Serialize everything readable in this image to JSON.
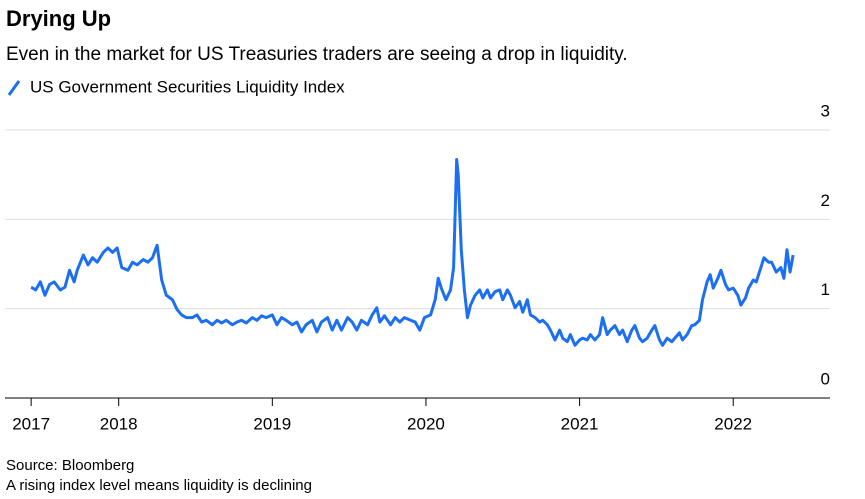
{
  "chart_data": {
    "type": "line",
    "title": "Drying Up",
    "subtitle": "Even in the market for US Treasuries traders are seeing a drop in liquidity.",
    "source": "Source: Bloomberg",
    "note": "A rising index level means liquidity is declining",
    "x": [
      2017.43,
      2017.46,
      2017.49,
      2017.52,
      2017.55,
      2017.58,
      2017.62,
      2017.65,
      2017.68,
      2017.71,
      2017.73,
      2017.77,
      2017.8,
      2017.83,
      2017.86,
      2017.9,
      2017.93,
      2017.96,
      2017.99,
      2018.02,
      2018.06,
      2018.09,
      2018.12,
      2018.16,
      2018.19,
      2018.22,
      2018.25,
      2018.28,
      2018.31,
      2018.35,
      2018.38,
      2018.41,
      2018.44,
      2018.48,
      2018.51,
      2018.54,
      2018.57,
      2018.61,
      2018.64,
      2018.67,
      2018.7,
      2018.74,
      2018.77,
      2018.8,
      2018.83,
      2018.87,
      2018.9,
      2018.93,
      2018.96,
      2019.0,
      2019.03,
      2019.06,
      2019.09,
      2019.13,
      2019.16,
      2019.19,
      2019.22,
      2019.26,
      2019.29,
      2019.32,
      2019.36,
      2019.39,
      2019.42,
      2019.45,
      2019.49,
      2019.52,
      2019.55,
      2019.58,
      2019.62,
      2019.65,
      2019.68,
      2019.7,
      2019.73,
      2019.77,
      2019.8,
      2019.83,
      2019.86,
      2019.9,
      2019.93,
      2019.96,
      2019.99,
      2020.03,
      2020.06,
      2020.08,
      2020.1,
      2020.13,
      2020.16,
      2020.18,
      2020.2,
      2020.21,
      2020.23,
      2020.25,
      2020.27,
      2020.29,
      2020.32,
      2020.35,
      2020.37,
      2020.4,
      2020.42,
      2020.45,
      2020.48,
      2020.5,
      2020.53,
      2020.55,
      2020.58,
      2020.61,
      2020.63,
      2020.66,
      2020.68,
      2020.71,
      2020.74,
      2020.76,
      2020.79,
      2020.81,
      2020.84,
      2020.87,
      2020.89,
      2020.92,
      2020.94,
      2020.97,
      2021.0,
      2021.02,
      2021.05,
      2021.07,
      2021.1,
      2021.13,
      2021.15,
      2021.18,
      2021.2,
      2021.23,
      2021.26,
      2021.28,
      2021.31,
      2021.34,
      2021.36,
      2021.39,
      2021.41,
      2021.44,
      2021.47,
      2021.49,
      2021.52,
      2021.54,
      2021.57,
      2021.6,
      2021.62,
      2021.65,
      2021.67,
      2021.7,
      2021.73,
      2021.75,
      2021.78,
      2021.8,
      2021.83,
      2021.85,
      2021.87,
      2021.9,
      2021.92,
      2021.95,
      2021.97,
      2022.0,
      2022.03,
      2022.05,
      2022.08,
      2022.1,
      2022.13,
      2022.15,
      2022.18,
      2022.2,
      2022.23,
      2022.25,
      2022.28,
      2022.31,
      2022.33,
      2022.35,
      2022.37,
      2022.39
    ],
    "series": [
      {
        "name": "US Government Securities Liquidity Index",
        "color": "#1c6ff0",
        "values": [
          1.24,
          1.21,
          1.3,
          1.15,
          1.27,
          1.3,
          1.21,
          1.24,
          1.43,
          1.3,
          1.43,
          1.6,
          1.49,
          1.57,
          1.52,
          1.63,
          1.68,
          1.63,
          1.68,
          1.46,
          1.43,
          1.52,
          1.49,
          1.55,
          1.52,
          1.57,
          1.71,
          1.32,
          1.15,
          1.1,
          0.99,
          0.93,
          0.9,
          0.9,
          0.93,
          0.85,
          0.87,
          0.82,
          0.87,
          0.84,
          0.87,
          0.82,
          0.85,
          0.87,
          0.84,
          0.9,
          0.87,
          0.92,
          0.9,
          0.93,
          0.82,
          0.9,
          0.87,
          0.82,
          0.85,
          0.74,
          0.82,
          0.87,
          0.74,
          0.85,
          0.9,
          0.76,
          0.87,
          0.76,
          0.9,
          0.85,
          0.76,
          0.87,
          0.82,
          0.93,
          1.01,
          0.85,
          0.92,
          0.82,
          0.9,
          0.85,
          0.9,
          0.87,
          0.85,
          0.76,
          0.9,
          0.93,
          1.1,
          1.34,
          1.23,
          1.1,
          1.21,
          1.46,
          2.67,
          2.5,
          1.66,
          1.21,
          0.9,
          1.04,
          1.15,
          1.21,
          1.12,
          1.21,
          1.12,
          1.19,
          1.21,
          1.1,
          1.21,
          1.15,
          1.01,
          1.08,
          0.96,
          1.1,
          0.93,
          0.9,
          0.85,
          0.87,
          0.82,
          0.76,
          0.65,
          0.76,
          0.67,
          0.63,
          0.71,
          0.59,
          0.65,
          0.67,
          0.65,
          0.71,
          0.65,
          0.71,
          0.9,
          0.71,
          0.76,
          0.81,
          0.71,
          0.76,
          0.63,
          0.76,
          0.81,
          0.67,
          0.63,
          0.67,
          0.76,
          0.81,
          0.65,
          0.59,
          0.67,
          0.63,
          0.67,
          0.73,
          0.65,
          0.71,
          0.81,
          0.82,
          0.87,
          1.1,
          1.3,
          1.38,
          1.23,
          1.34,
          1.43,
          1.27,
          1.21,
          1.23,
          1.15,
          1.04,
          1.12,
          1.23,
          1.32,
          1.3,
          1.46,
          1.57,
          1.52,
          1.52,
          1.41,
          1.46,
          1.34,
          1.66,
          1.41,
          1.6
        ]
      }
    ],
    "xlim": [
      2017.26,
      2022.63
    ],
    "xticks": [
      {
        "value": 2017.43,
        "label": "2017"
      },
      2018,
      2019,
      2020,
      2021,
      2022
    ],
    "ylim": [
      0,
      3
    ],
    "yticks": [
      0,
      1,
      2,
      3
    ],
    "grid": true
  }
}
